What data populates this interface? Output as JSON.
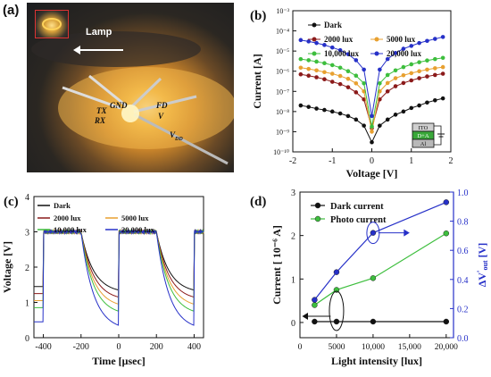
{
  "panel_a": {
    "letter": "(a)",
    "lamp_label": "Lamp",
    "labels": {
      "gnd": "GND",
      "tx": "TX",
      "rx": "RX",
      "fd": "FD",
      "v": "V",
      "vdd": "V",
      "vdd_sub": "DD"
    }
  },
  "colors": {
    "dark": "#111111",
    "lux2000": "#8B1A1A",
    "lux5000": "#E8A030",
    "lux10000": "#3DBE3D",
    "lux20000": "#2630C8",
    "axis_right": "#2630C8"
  },
  "chart_data": [
    {
      "panel": "(b)",
      "type": "scatter",
      "xlabel": "Voltage [V]",
      "ylabel": "Current [A]",
      "xlim": [
        -2,
        2
      ],
      "xticks": [
        -2,
        -1,
        0,
        1,
        2
      ],
      "ylim_log10": [
        -10,
        -3
      ],
      "yticks": [
        "10⁻¹⁰",
        "10⁻⁹",
        "10⁻⁸",
        "10⁻⁷",
        "10⁻⁶",
        "10⁻⁵",
        "10⁻⁴",
        "10⁻³"
      ],
      "ylog": true,
      "legend": [
        "Dark",
        "2000 lux",
        "5000 lux",
        "10,000 lux",
        "20,000 lux"
      ],
      "x": [
        -1.8,
        -1.6,
        -1.4,
        -1.2,
        -1.0,
        -0.8,
        -0.6,
        -0.4,
        -0.2,
        0.0,
        0.2,
        0.4,
        0.6,
        0.8,
        1.0,
        1.2,
        1.4,
        1.6,
        1.8
      ],
      "series": [
        {
          "name": "Dark",
          "values": [
            2e-08,
            1.7e-08,
            1.4e-08,
            1.2e-08,
            1e-08,
            8e-09,
            6e-09,
            4e-09,
            2e-09,
            3e-10,
            2e-09,
            4e-09,
            7e-09,
            1e-08,
            1.5e-08,
            2e-08,
            2.8e-08,
            3.6e-08,
            4.5e-08
          ]
        },
        {
          "name": "2000 lux",
          "values": [
            7e-07,
            6e-07,
            5e-07,
            4e-07,
            3e-07,
            2.3e-07,
            1.6e-07,
            9e-08,
            4e-08,
            1.5e-09,
            4e-08,
            1e-07,
            1.8e-07,
            2.6e-07,
            3.5e-07,
            4.5e-07,
            5.5e-07,
            6.5e-07,
            7.5e-07
          ]
        },
        {
          "name": "5000 lux",
          "values": [
            1.5e-06,
            1.3e-06,
            1.1e-06,
            9e-07,
            7.5e-07,
            5.8e-07,
            4.2e-07,
            2.5e-07,
            1e-07,
            1e-09,
            1e-07,
            2.6e-07,
            4.5e-07,
            6.3e-07,
            8e-07,
            1e-06,
            1.2e-06,
            1.4e-06,
            1.6e-06
          ]
        },
        {
          "name": "10,000 lux",
          "values": [
            4e-06,
            3.5e-06,
            3e-06,
            2.5e-06,
            2e-06,
            1.5e-06,
            1e-06,
            6e-07,
            2.5e-07,
            1.8e-09,
            2.5e-07,
            6.5e-07,
            1.1e-06,
            1.6e-06,
            2.2e-06,
            2.8e-06,
            3.4e-06,
            4e-06,
            4.6e-06
          ]
        },
        {
          "name": "20,000 lux",
          "values": [
            3.5e-05,
            3e-05,
            2.5e-05,
            2e-05,
            1.5e-05,
            1.1e-05,
            7e-06,
            3.5e-06,
            1.2e-06,
            6e-09,
            1.2e-06,
            4e-06,
            8e-06,
            1.3e-05,
            1.8e-05,
            2.5e-05,
            3.2e-05,
            4e-05,
            5e-05
          ]
        }
      ],
      "inset_layers": [
        "ITO",
        "D+A",
        "Al"
      ]
    },
    {
      "panel": "(c)",
      "type": "line",
      "xlabel": "Time [μsec]",
      "ylabel": "Voltage [V]",
      "xlim": [
        -450,
        450
      ],
      "xticks": [
        -400,
        -200,
        0,
        200,
        400
      ],
      "ylim": [
        0,
        4
      ],
      "yticks": [
        0,
        1,
        2,
        3,
        4
      ],
      "legend": [
        "Dark",
        "2000 lux",
        "5000 lux",
        "10,000 lux",
        "20,000 lux"
      ],
      "high_level": 3.0,
      "pulse_starts": [
        -400,
        0,
        400
      ],
      "drop_starts": [
        -200,
        200
      ],
      "series": [
        {
          "name": "Dark",
          "low_end": 1.35
        },
        {
          "name": "2000 lux",
          "low_end": 1.15
        },
        {
          "name": "5000 lux",
          "low_end": 0.95
        },
        {
          "name": "10,000 lux",
          "low_end": 0.75
        },
        {
          "name": "20,000 lux",
          "low_end": 0.35
        }
      ]
    },
    {
      "panel": "(d)",
      "type": "line",
      "xlabel": "Light intensity [lux]",
      "ylabel": "Current [ 10⁻⁶ A]",
      "ylabel_right": "ΔV'out [V]",
      "ylabel_right_main": "ΔV",
      "ylabel_right_prime": "'",
      "ylabel_right_sub": "out",
      "ylabel_right_unit": "[V]",
      "xlim": [
        0,
        21000
      ],
      "xticks": [
        "0",
        "5000",
        "10,000",
        "15,000",
        "20,000"
      ],
      "xtick_values": [
        0,
        5000,
        10000,
        15000,
        20000
      ],
      "ylim": [
        -0.35,
        3.0
      ],
      "yticks": [
        0,
        1,
        2,
        3
      ],
      "ylim_right": [
        0,
        1.0
      ],
      "yticks_right": [
        "0.0",
        "0.2",
        "0.4",
        "0.6",
        "0.8",
        "1.0"
      ],
      "legend": [
        "Dark current",
        "Photo current"
      ],
      "x": [
        2000,
        5000,
        10000,
        20000
      ],
      "series": [
        {
          "name": "Dark current",
          "axis": "left",
          "values": [
            0.02,
            0.02,
            0.02,
            0.02
          ]
        },
        {
          "name": "Photo current",
          "axis": "left",
          "values": [
            0.4,
            0.75,
            1.02,
            2.05
          ]
        },
        {
          "name": "ΔV'out",
          "axis": "right",
          "values": [
            0.26,
            0.45,
            0.72,
            0.93
          ]
        }
      ]
    }
  ]
}
